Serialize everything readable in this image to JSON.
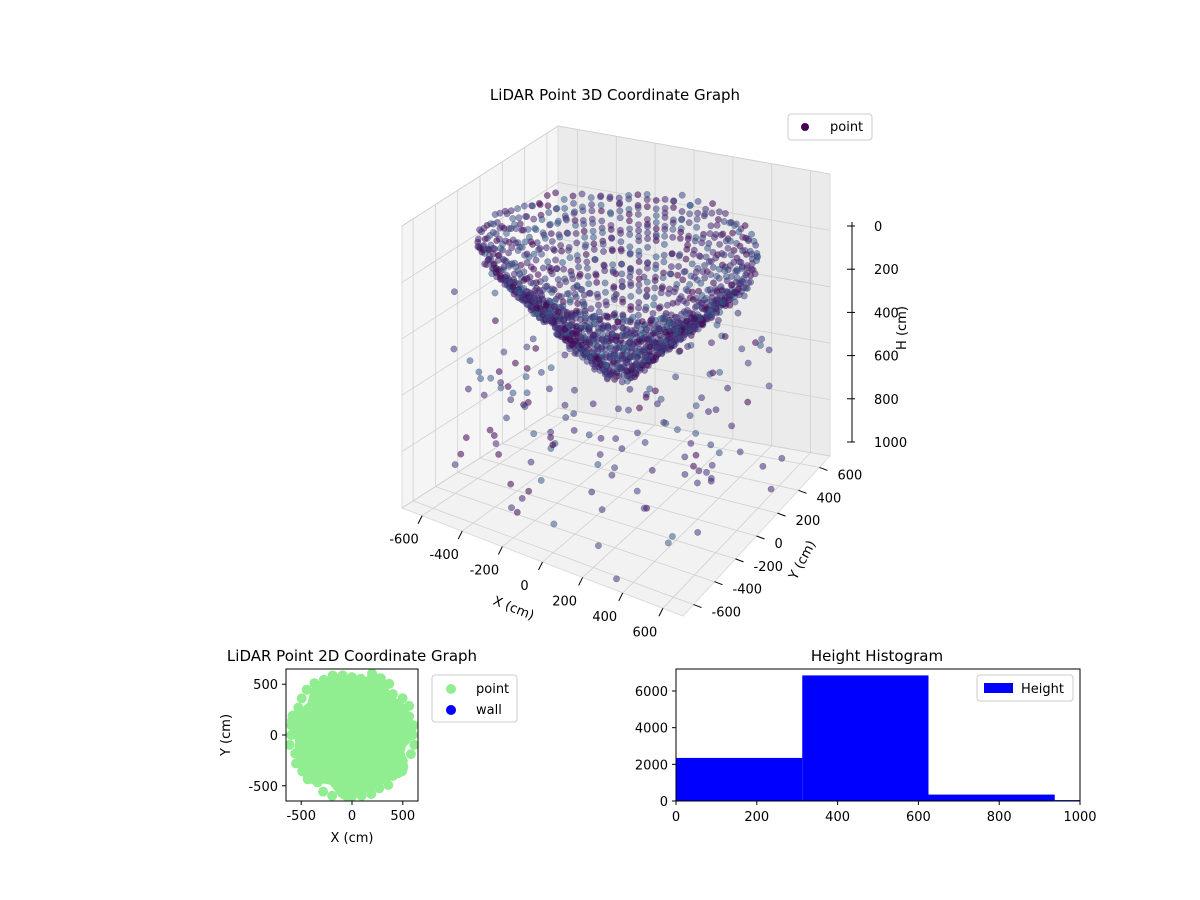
{
  "chart_data": [
    {
      "type": "scatter",
      "projection": "3d",
      "title": "LiDAR Point 3D Coordinate Graph",
      "xlabel": "X (cm)",
      "ylabel": "Y (cm)",
      "zlabel": "H (cm)",
      "xlim": [
        -700,
        700
      ],
      "ylim": [
        -700,
        700
      ],
      "zlim": [
        1000,
        0
      ],
      "z_axis_inverted": true,
      "xticks": [
        -600,
        -400,
        -200,
        0,
        200,
        400,
        600
      ],
      "yticks": [
        -600,
        -400,
        -200,
        0,
        200,
        400,
        600
      ],
      "zticks": [
        0,
        200,
        400,
        600,
        800,
        1000
      ],
      "grid": true,
      "legend": {
        "placement": "top-right",
        "entries": [
          "point"
        ]
      },
      "series": [
        {
          "name": "point",
          "color": "#440154",
          "description": "dense dome-shaped point cloud spanning roughly x,y in [-650,650] and height 0-600 cm, with sparse outlier points extending to 1000 cm"
        }
      ]
    },
    {
      "type": "scatter",
      "title": "LiDAR Point 2D Coordinate Graph",
      "xlabel": "X (cm)",
      "ylabel": "Y (cm)",
      "xlim": [
        -650,
        650
      ],
      "ylim": [
        -650,
        650
      ],
      "xticks": [
        -500,
        0,
        500
      ],
      "yticks": [
        -500,
        0,
        500
      ],
      "grid": false,
      "legend": {
        "placement": "outside-right",
        "entries": [
          "point",
          "wall"
        ]
      },
      "series": [
        {
          "name": "point",
          "color": "#90ee90",
          "description": "dense filled disc of points, radius ~620 cm centred at origin"
        },
        {
          "name": "wall",
          "color": "#0000ff",
          "points": []
        }
      ]
    },
    {
      "type": "bar",
      "subtype": "histogram",
      "title": "Height Histogram",
      "xlim": [
        0,
        1000
      ],
      "ylim": [
        0,
        7200
      ],
      "xticks": [
        0,
        200,
        400,
        600,
        800,
        1000
      ],
      "yticks": [
        0,
        2000,
        4000,
        6000
      ],
      "bin_edges": [
        0,
        312.5,
        625,
        937.5,
        1250
      ],
      "series": [
        {
          "name": "Height",
          "color": "#0000ff",
          "values": [
            2350,
            6850,
            350,
            50
          ]
        }
      ],
      "legend": {
        "placement": "top-right",
        "entries": [
          "Height"
        ]
      },
      "grid": false
    }
  ]
}
